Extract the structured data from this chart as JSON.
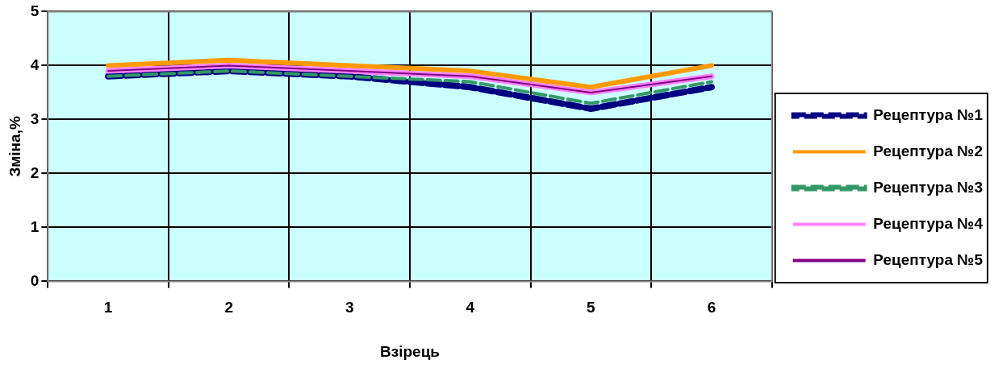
{
  "chart_data": {
    "type": "line",
    "xlabel": "Взірець",
    "ylabel": "Зміна,%",
    "categories": [
      "1",
      "2",
      "3",
      "4",
      "5",
      "6"
    ],
    "series": [
      {
        "name": "Рецептура №1",
        "color": "#000080",
        "line_style": "dashed",
        "values": [
          3.8,
          3.9,
          3.8,
          3.6,
          3.2,
          3.6
        ]
      },
      {
        "name": "Рецептура №2",
        "color": "#ff9900",
        "line_style": "solid",
        "values": [
          4.0,
          4.1,
          4.0,
          3.9,
          3.6,
          4.0
        ]
      },
      {
        "name": "Рецептура №3",
        "color": "#339966",
        "line_style": "dashed",
        "values": [
          3.8,
          3.9,
          3.8,
          3.7,
          3.3,
          3.7
        ]
      },
      {
        "name": "Рецептура №4",
        "color": "#ff80ff",
        "line_style": "solid",
        "values": [
          3.9,
          4.0,
          3.9,
          3.8,
          3.5,
          3.8
        ]
      },
      {
        "name": "Рецептура №5",
        "color": "#800080",
        "line_style": "solid",
        "values": [
          3.9,
          4.0,
          3.9,
          3.8,
          3.5,
          3.8
        ]
      }
    ],
    "ylim": [
      0,
      5
    ],
    "yticks": [
      0,
      1,
      2,
      3,
      4,
      5
    ],
    "grid": true,
    "legend": "right",
    "marker": "none"
  }
}
